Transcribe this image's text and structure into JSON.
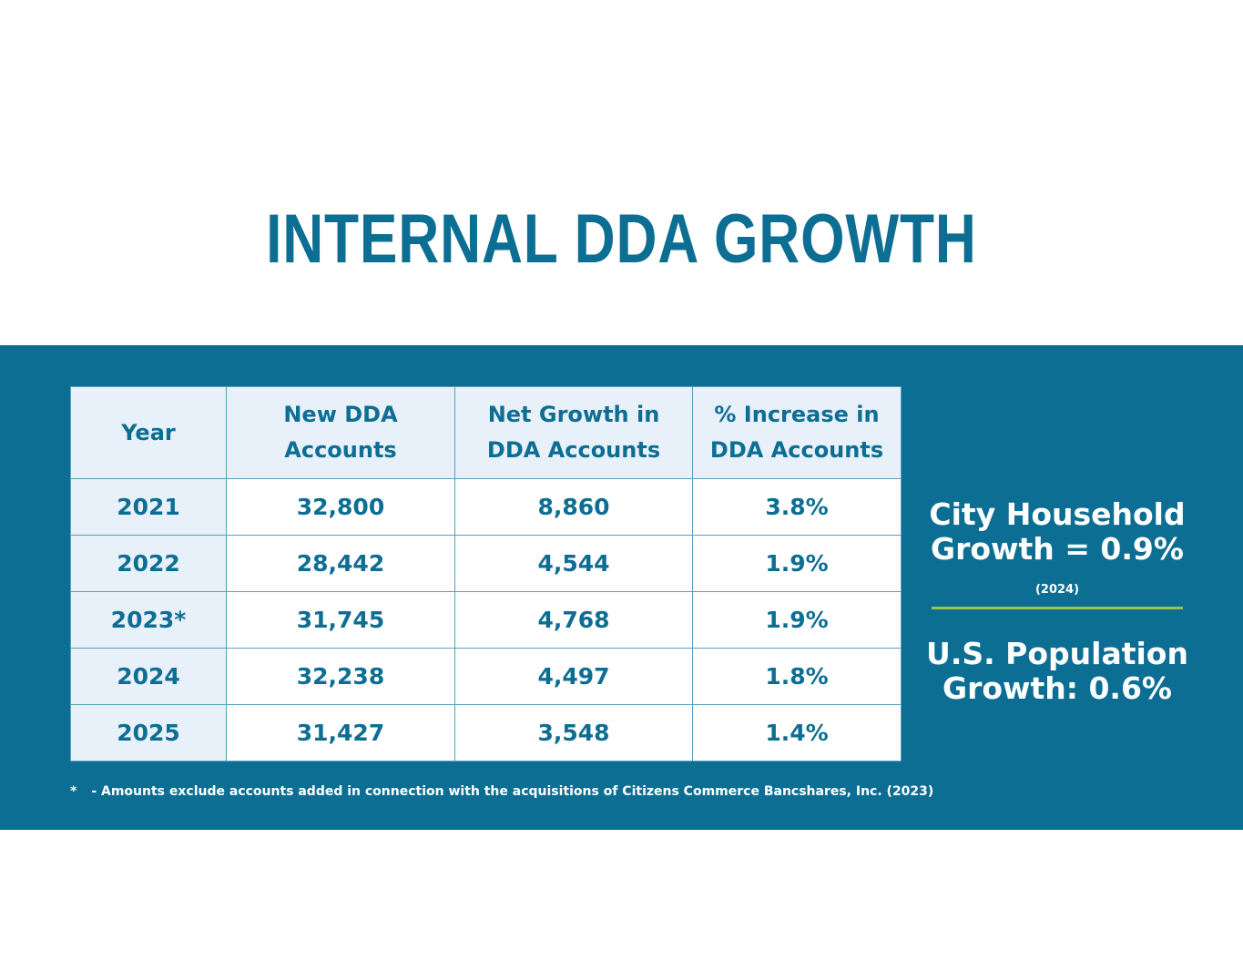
{
  "title": "INTERNAL DDA GROWTH",
  "colors": {
    "brand_blue": "#0d6e93",
    "header_bg": "#e8f0f9",
    "divider_green": "#9cc34a"
  },
  "table": {
    "headers": {
      "year": "Year",
      "new_dda": [
        "New DDA",
        "Accounts"
      ],
      "net_growth": [
        "Net Growth in",
        "DDA Accounts"
      ],
      "pct_increase": [
        "% Increase in",
        "DDA Accounts"
      ]
    },
    "rows": [
      {
        "year": "2021",
        "new_dda": "32,800",
        "net_growth": "8,860",
        "pct_increase": "3.8%"
      },
      {
        "year": "2022",
        "new_dda": "28,442",
        "net_growth": "4,544",
        "pct_increase": "1.9%"
      },
      {
        "year": "2023*",
        "new_dda": "31,745",
        "net_growth": "4,768",
        "pct_increase": "1.9%"
      },
      {
        "year": "2024",
        "new_dda": "32,238",
        "net_growth": "4,497",
        "pct_increase": "1.8%"
      },
      {
        "year": "2025",
        "new_dda": "31,427",
        "net_growth": "3,548",
        "pct_increase": "1.4%"
      }
    ]
  },
  "stats": {
    "city_household": [
      "City Household",
      "Growth = 0.9%"
    ],
    "city_year": "(2024)",
    "us_population": [
      "U.S. Population",
      "Growth: 0.6%"
    ]
  },
  "footnote": {
    "marker": "*",
    "text": "- Amounts exclude accounts added in connection with the acquisitions of Citizens Commerce Bancshares, Inc. (2023)"
  }
}
